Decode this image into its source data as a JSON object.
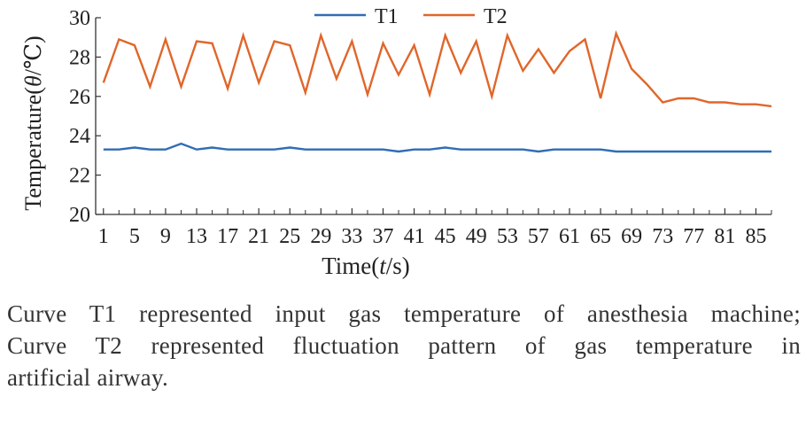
{
  "chart_data": {
    "type": "line",
    "title": "",
    "xlabel": "Time(t/s)",
    "xlabel_parts": [
      "Time(",
      "t",
      "/s)"
    ],
    "ylabel": "Temperature(θ/℃)",
    "ylabel_parts": [
      "Temperature(",
      "θ",
      "/℃)"
    ],
    "ylim": [
      20,
      30
    ],
    "yticks": [
      20,
      22,
      24,
      26,
      28,
      30
    ],
    "xlim": [
      0,
      87
    ],
    "xticks": [
      1,
      5,
      9,
      13,
      17,
      21,
      25,
      29,
      33,
      37,
      41,
      45,
      49,
      53,
      57,
      61,
      65,
      69,
      73,
      77,
      81,
      85
    ],
    "legend_position": "top-center",
    "grid": false,
    "x": [
      1,
      3,
      5,
      7,
      9,
      11,
      13,
      15,
      17,
      19,
      21,
      23,
      25,
      27,
      29,
      31,
      33,
      35,
      37,
      39,
      41,
      43,
      45,
      47,
      49,
      51,
      53,
      55,
      57,
      59,
      61,
      63,
      65,
      67,
      69,
      71,
      73,
      75,
      77,
      79,
      81,
      83,
      85,
      87
    ],
    "series": [
      {
        "name": "T1",
        "color": "#2f6db5",
        "values": [
          23.3,
          23.3,
          23.4,
          23.3,
          23.3,
          23.6,
          23.3,
          23.4,
          23.3,
          23.3,
          23.3,
          23.3,
          23.4,
          23.3,
          23.3,
          23.3,
          23.3,
          23.3,
          23.3,
          23.2,
          23.3,
          23.3,
          23.4,
          23.3,
          23.3,
          23.3,
          23.3,
          23.3,
          23.2,
          23.3,
          23.3,
          23.3,
          23.3,
          23.2,
          23.2,
          23.2,
          23.2,
          23.2,
          23.2,
          23.2,
          23.2,
          23.2,
          23.2,
          23.2
        ]
      },
      {
        "name": "T2",
        "color": "#e0662a",
        "values": [
          26.7,
          28.9,
          28.6,
          26.5,
          28.9,
          26.5,
          28.8,
          28.7,
          26.4,
          29.1,
          26.7,
          28.8,
          28.6,
          26.2,
          29.1,
          26.9,
          28.8,
          26.1,
          28.7,
          27.1,
          28.6,
          26.1,
          29.1,
          27.2,
          28.8,
          26.0,
          29.1,
          27.3,
          28.4,
          27.2,
          28.3,
          28.9,
          25.9,
          29.2,
          27.4,
          26.6,
          25.7,
          25.9,
          25.9,
          25.7,
          25.7,
          25.6,
          25.6,
          25.5
        ]
      }
    ]
  },
  "caption": {
    "line1": "Curve T1 represented input gas temperature of anesthesia machine;",
    "line2": "Curve T2 represented fluctuation pattern of gas temperature in",
    "line3": "artificial airway."
  }
}
